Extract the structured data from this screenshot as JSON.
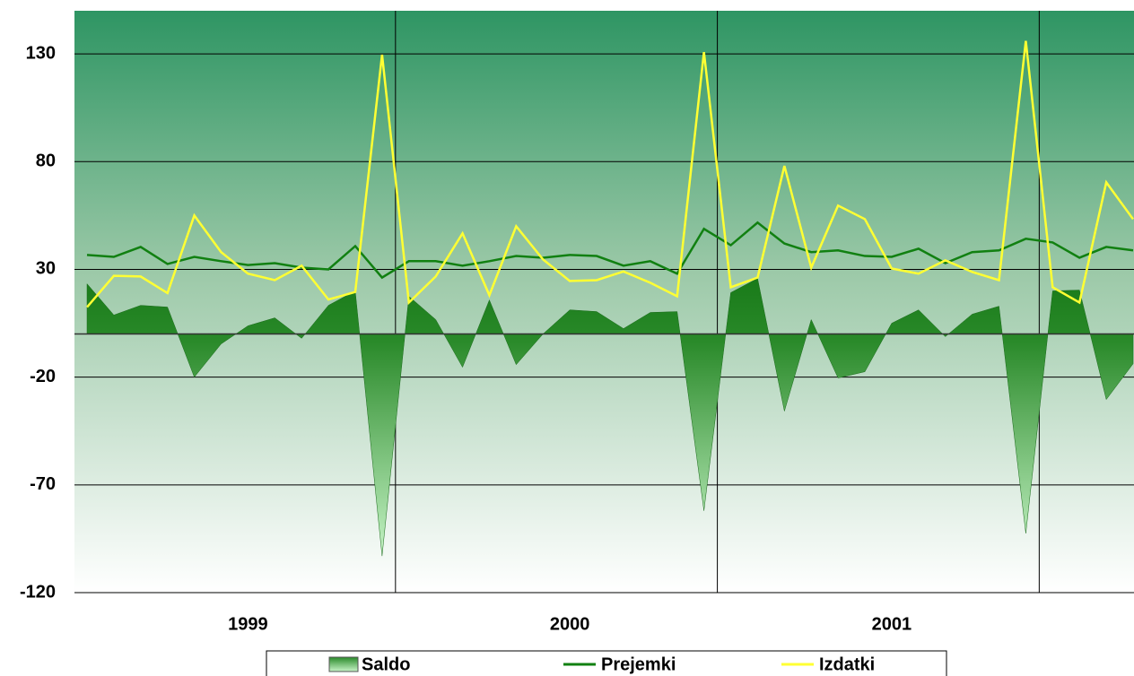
{
  "chart_data": {
    "type": "area-line",
    "categories": [
      null,
      null,
      null,
      null,
      null,
      null,
      "1999",
      null,
      null,
      null,
      null,
      null,
      null,
      null,
      null,
      null,
      null,
      null,
      "2000",
      null,
      null,
      null,
      null,
      null,
      null,
      null,
      null,
      null,
      null,
      null,
      "2001",
      null,
      null,
      null,
      null,
      null,
      null,
      null,
      null,
      null
    ],
    "series": [
      {
        "name": "Saldo",
        "kind": "area",
        "color": "#1e7d1e",
        "values": [
          23.3,
          8.8,
          13.3,
          12.5,
          -20,
          -4.6,
          3.8,
          7.5,
          -2,
          13.3,
          20,
          -103,
          17.5,
          6.7,
          -15.4,
          15.8,
          -14.2,
          0,
          11.2,
          10.4,
          2.5,
          10,
          10.4,
          -82,
          19.2,
          25.8,
          -35.8,
          6.7,
          -20.4,
          -17.5,
          5,
          11.2,
          -1.2,
          9.2,
          12.9,
          -92.5,
          20,
          20.4,
          -30.4,
          -13.8
        ]
      },
      {
        "name": "Prejemki",
        "kind": "line",
        "color": "#118011",
        "values": [
          36.7,
          35.8,
          40.4,
          32.5,
          35.8,
          33.8,
          32,
          32.9,
          30.8,
          30,
          40.8,
          26.2,
          33.8,
          33.8,
          31.7,
          33.8,
          36.2,
          35.4,
          36.7,
          36.2,
          31.7,
          33.8,
          28,
          48.8,
          41.2,
          51.7,
          42,
          38,
          38.8,
          36.2,
          35.8,
          39.6,
          32.9,
          38,
          38.8,
          44.2,
          42.5,
          35.4,
          40.4,
          38.8
        ]
      },
      {
        "name": "Izdatki",
        "kind": "line",
        "color": "#ffff33",
        "values": [
          12.5,
          27,
          26.7,
          19,
          55,
          38,
          28,
          25,
          31.7,
          16,
          19.5,
          129.6,
          14.6,
          26.7,
          46.7,
          18,
          50,
          34.6,
          24.6,
          25,
          29,
          23.8,
          17.5,
          130.8,
          21.7,
          26.2,
          78,
          30.8,
          59.6,
          53.3,
          30.4,
          28,
          34.2,
          28.8,
          25,
          136,
          21.7,
          14.6,
          70.4,
          53.3
        ]
      }
    ],
    "ylim": [
      -120,
      150
    ],
    "yticks": [
      -120,
      -70,
      -20,
      30,
      80,
      130
    ],
    "grid": true,
    "legend": "bottom"
  }
}
